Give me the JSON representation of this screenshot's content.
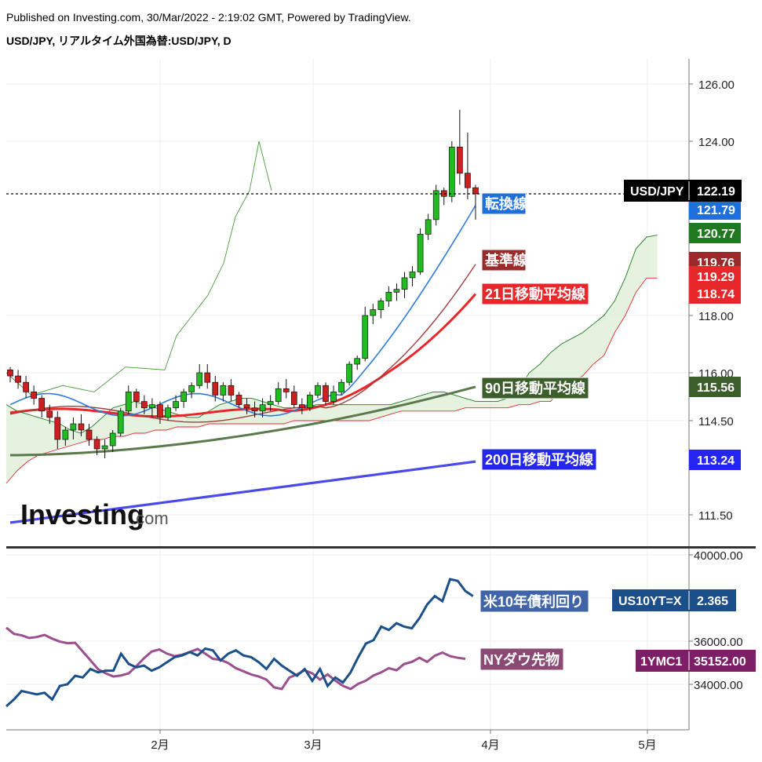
{
  "header": {
    "published": "Published on Investing.com, 30/Mar/2022 - 2:19:02 GMT, Powered by TradingView.",
    "title": "USD/JPY, リアルタイム外国為替:USD/JPY, D"
  },
  "logo": {
    "text": "Investing",
    "suffix": ".com"
  },
  "chart_data": [
    {
      "type": "candlestick",
      "title": "USD/JPY, リアルタイム外国為替:USD/JPY, D",
      "x_ticks": [
        "2月",
        "3月",
        "4月",
        "5月"
      ],
      "y_ticks": [
        "126.00",
        "124.00",
        "118.00",
        "116.00",
        "114.50",
        "111.50"
      ],
      "ylim": [
        110.7,
        127.0
      ],
      "last_price_line": 122.19,
      "candles": [
        [
          116.1,
          116.2,
          115.7,
          115.9
        ],
        [
          115.9,
          116.1,
          115.5,
          115.7
        ],
        [
          115.7,
          115.9,
          115.2,
          115.4
        ],
        [
          115.4,
          115.6,
          115.0,
          115.2
        ],
        [
          115.2,
          115.3,
          114.6,
          114.8
        ],
        [
          114.8,
          115.0,
          114.4,
          114.6
        ],
        [
          114.6,
          114.8,
          113.6,
          113.9
        ],
        [
          113.9,
          114.3,
          113.7,
          114.2
        ],
        [
          114.2,
          114.6,
          113.9,
          114.4
        ],
        [
          114.4,
          114.7,
          114.0,
          114.2
        ],
        [
          114.2,
          114.4,
          113.7,
          113.9
        ],
        [
          113.9,
          114.0,
          113.4,
          113.6
        ],
        [
          113.6,
          113.9,
          113.3,
          113.7
        ],
        [
          113.7,
          114.2,
          113.5,
          114.1
        ],
        [
          114.1,
          114.9,
          114.0,
          114.8
        ],
        [
          114.8,
          115.6,
          114.7,
          115.4
        ],
        [
          115.4,
          115.5,
          114.9,
          115.1
        ],
        [
          115.1,
          115.3,
          114.7,
          114.9
        ],
        [
          114.9,
          115.2,
          114.6,
          115.0
        ],
        [
          115.0,
          115.1,
          114.4,
          114.6
        ],
        [
          114.6,
          115.0,
          114.5,
          114.9
        ],
        [
          114.9,
          115.3,
          114.8,
          115.1
        ],
        [
          115.1,
          115.5,
          114.9,
          115.4
        ],
        [
          115.4,
          115.7,
          115.2,
          115.6
        ],
        [
          115.6,
          116.3,
          115.5,
          116.0
        ],
        [
          116.0,
          116.3,
          115.5,
          115.7
        ],
        [
          115.7,
          115.9,
          115.1,
          115.3
        ],
        [
          115.3,
          115.7,
          115.1,
          115.6
        ],
        [
          115.6,
          115.8,
          115.1,
          115.3
        ],
        [
          115.3,
          115.4,
          114.9,
          115.0
        ],
        [
          115.0,
          115.2,
          114.7,
          114.9
        ],
        [
          114.9,
          115.1,
          114.6,
          114.8
        ],
        [
          114.8,
          115.2,
          114.6,
          115.0
        ],
        [
          115.0,
          115.3,
          114.8,
          115.1
        ],
        [
          115.1,
          115.7,
          115.0,
          115.5
        ],
        [
          115.5,
          115.8,
          115.2,
          115.4
        ],
        [
          115.4,
          115.6,
          114.9,
          115.0
        ],
        [
          115.0,
          115.2,
          114.7,
          114.9
        ],
        [
          114.9,
          115.4,
          114.8,
          115.3
        ],
        [
          115.3,
          115.7,
          115.2,
          115.6
        ],
        [
          115.6,
          115.7,
          115.0,
          115.1
        ],
        [
          115.1,
          115.6,
          115.0,
          115.4
        ],
        [
          115.4,
          115.8,
          115.3,
          115.7
        ],
        [
          115.7,
          116.4,
          115.6,
          116.3
        ],
        [
          116.3,
          116.6,
          116.1,
          116.5
        ],
        [
          116.5,
          118.3,
          116.4,
          118.0
        ],
        [
          118.0,
          118.4,
          117.7,
          118.2
        ],
        [
          118.2,
          118.6,
          117.9,
          118.5
        ],
        [
          118.5,
          119.0,
          118.3,
          118.8
        ],
        [
          118.8,
          119.1,
          118.5,
          118.9
        ],
        [
          118.9,
          119.5,
          118.6,
          119.3
        ],
        [
          119.3,
          119.7,
          119.0,
          119.5
        ],
        [
          119.5,
          121.0,
          119.4,
          120.8
        ],
        [
          120.8,
          121.5,
          120.6,
          121.3
        ],
        [
          121.3,
          122.5,
          121.1,
          122.3
        ],
        [
          122.3,
          122.4,
          121.8,
          122.1
        ],
        [
          122.1,
          124.0,
          121.9,
          123.8
        ],
        [
          123.8,
          125.1,
          122.5,
          122.9
        ],
        [
          122.9,
          124.3,
          122.0,
          122.4
        ],
        [
          122.4,
          122.5,
          121.3,
          122.19
        ]
      ],
      "lines": [
        {
          "name": "転換線",
          "label": "転換線",
          "color": "#2f7bd9",
          "value_label": "121.79",
          "badge_bg": "#1e6fd9"
        },
        {
          "name": "基準線",
          "label": "基準線",
          "color": "#a13d3d",
          "value_label": "119.76",
          "badge_bg": "#9b2a2a"
        },
        {
          "name": "21日移動平均線",
          "label": "21日移動平均線",
          "color": "#e8272b",
          "value_label": "118.74",
          "badge_bg": "#e8272b"
        },
        {
          "name": "90日移動平均線",
          "label": "90日移動平均線",
          "color": "#5a7a4c",
          "value_label": "115.56",
          "badge_bg": "#3b5e2b"
        },
        {
          "name": "200日移動平均線",
          "label": "200日移動平均線",
          "color": "#4a4ae8",
          "value_label": "113.24",
          "badge_bg": "#2525f0"
        }
      ],
      "cloud": {
        "span_a_value": "120.77",
        "span_b_value": "119.29",
        "span_a_color": "#1f7a1f",
        "span_b_color": "#e8272b"
      },
      "price_badge": {
        "label": "USD/JPY",
        "value": "122.19"
      }
    },
    {
      "type": "line",
      "x_ticks": [
        "2月",
        "3月",
        "4月",
        "5月"
      ],
      "y_ticks": [
        "40000.00",
        "36000.00",
        "34000.00"
      ],
      "series": [
        {
          "name": "米10年債利回り",
          "label": "米10年債利回り",
          "color": "#1b4f8a",
          "symbol": "US10YT=X",
          "value": "2.365",
          "values": [
            1.72,
            1.76,
            1.81,
            1.8,
            1.79,
            1.8,
            1.76,
            1.84,
            1.85,
            1.9,
            1.89,
            1.94,
            1.92,
            1.93,
            1.93,
            2.03,
            1.97,
            1.95,
            1.96,
            1.93,
            1.95,
            1.98,
            2.01,
            2.02,
            2.04,
            2.02,
            2.06,
            2.05,
            1.99,
            2.03,
            2.05,
            2.02,
            2.01,
            1.98,
            1.94,
            2.0,
            1.96,
            1.93,
            1.9,
            1.94,
            1.87,
            1.94,
            1.84,
            1.89,
            1.86,
            1.92,
            2.01,
            2.09,
            2.11,
            2.19,
            2.17,
            2.21,
            2.19,
            2.18,
            2.24,
            2.32,
            2.37,
            2.34,
            2.47,
            2.46,
            2.4,
            2.37
          ]
        },
        {
          "name": "NYダウ先物",
          "label": "NYダウ先物",
          "color": "#9b4f8f",
          "symbol": "1YMC1",
          "value": "35152.00",
          "values": [
            36650,
            36350,
            36280,
            36150,
            36200,
            36300,
            36120,
            35980,
            35900,
            35920,
            35500,
            35080,
            34650,
            34450,
            34300,
            34350,
            34450,
            34800,
            35180,
            35500,
            35600,
            35400,
            35280,
            35350,
            35480,
            35620,
            35400,
            35150,
            35100,
            34950,
            34700,
            34550,
            34400,
            34300,
            34150,
            33780,
            33700,
            34250,
            34400,
            34600,
            34450,
            34150,
            34400,
            34100,
            33850,
            33700,
            33950,
            34100,
            34350,
            34500,
            34700,
            34600,
            34900,
            35000,
            35200,
            35000,
            35300,
            35450,
            35280,
            35200,
            35152
          ]
        }
      ]
    }
  ]
}
